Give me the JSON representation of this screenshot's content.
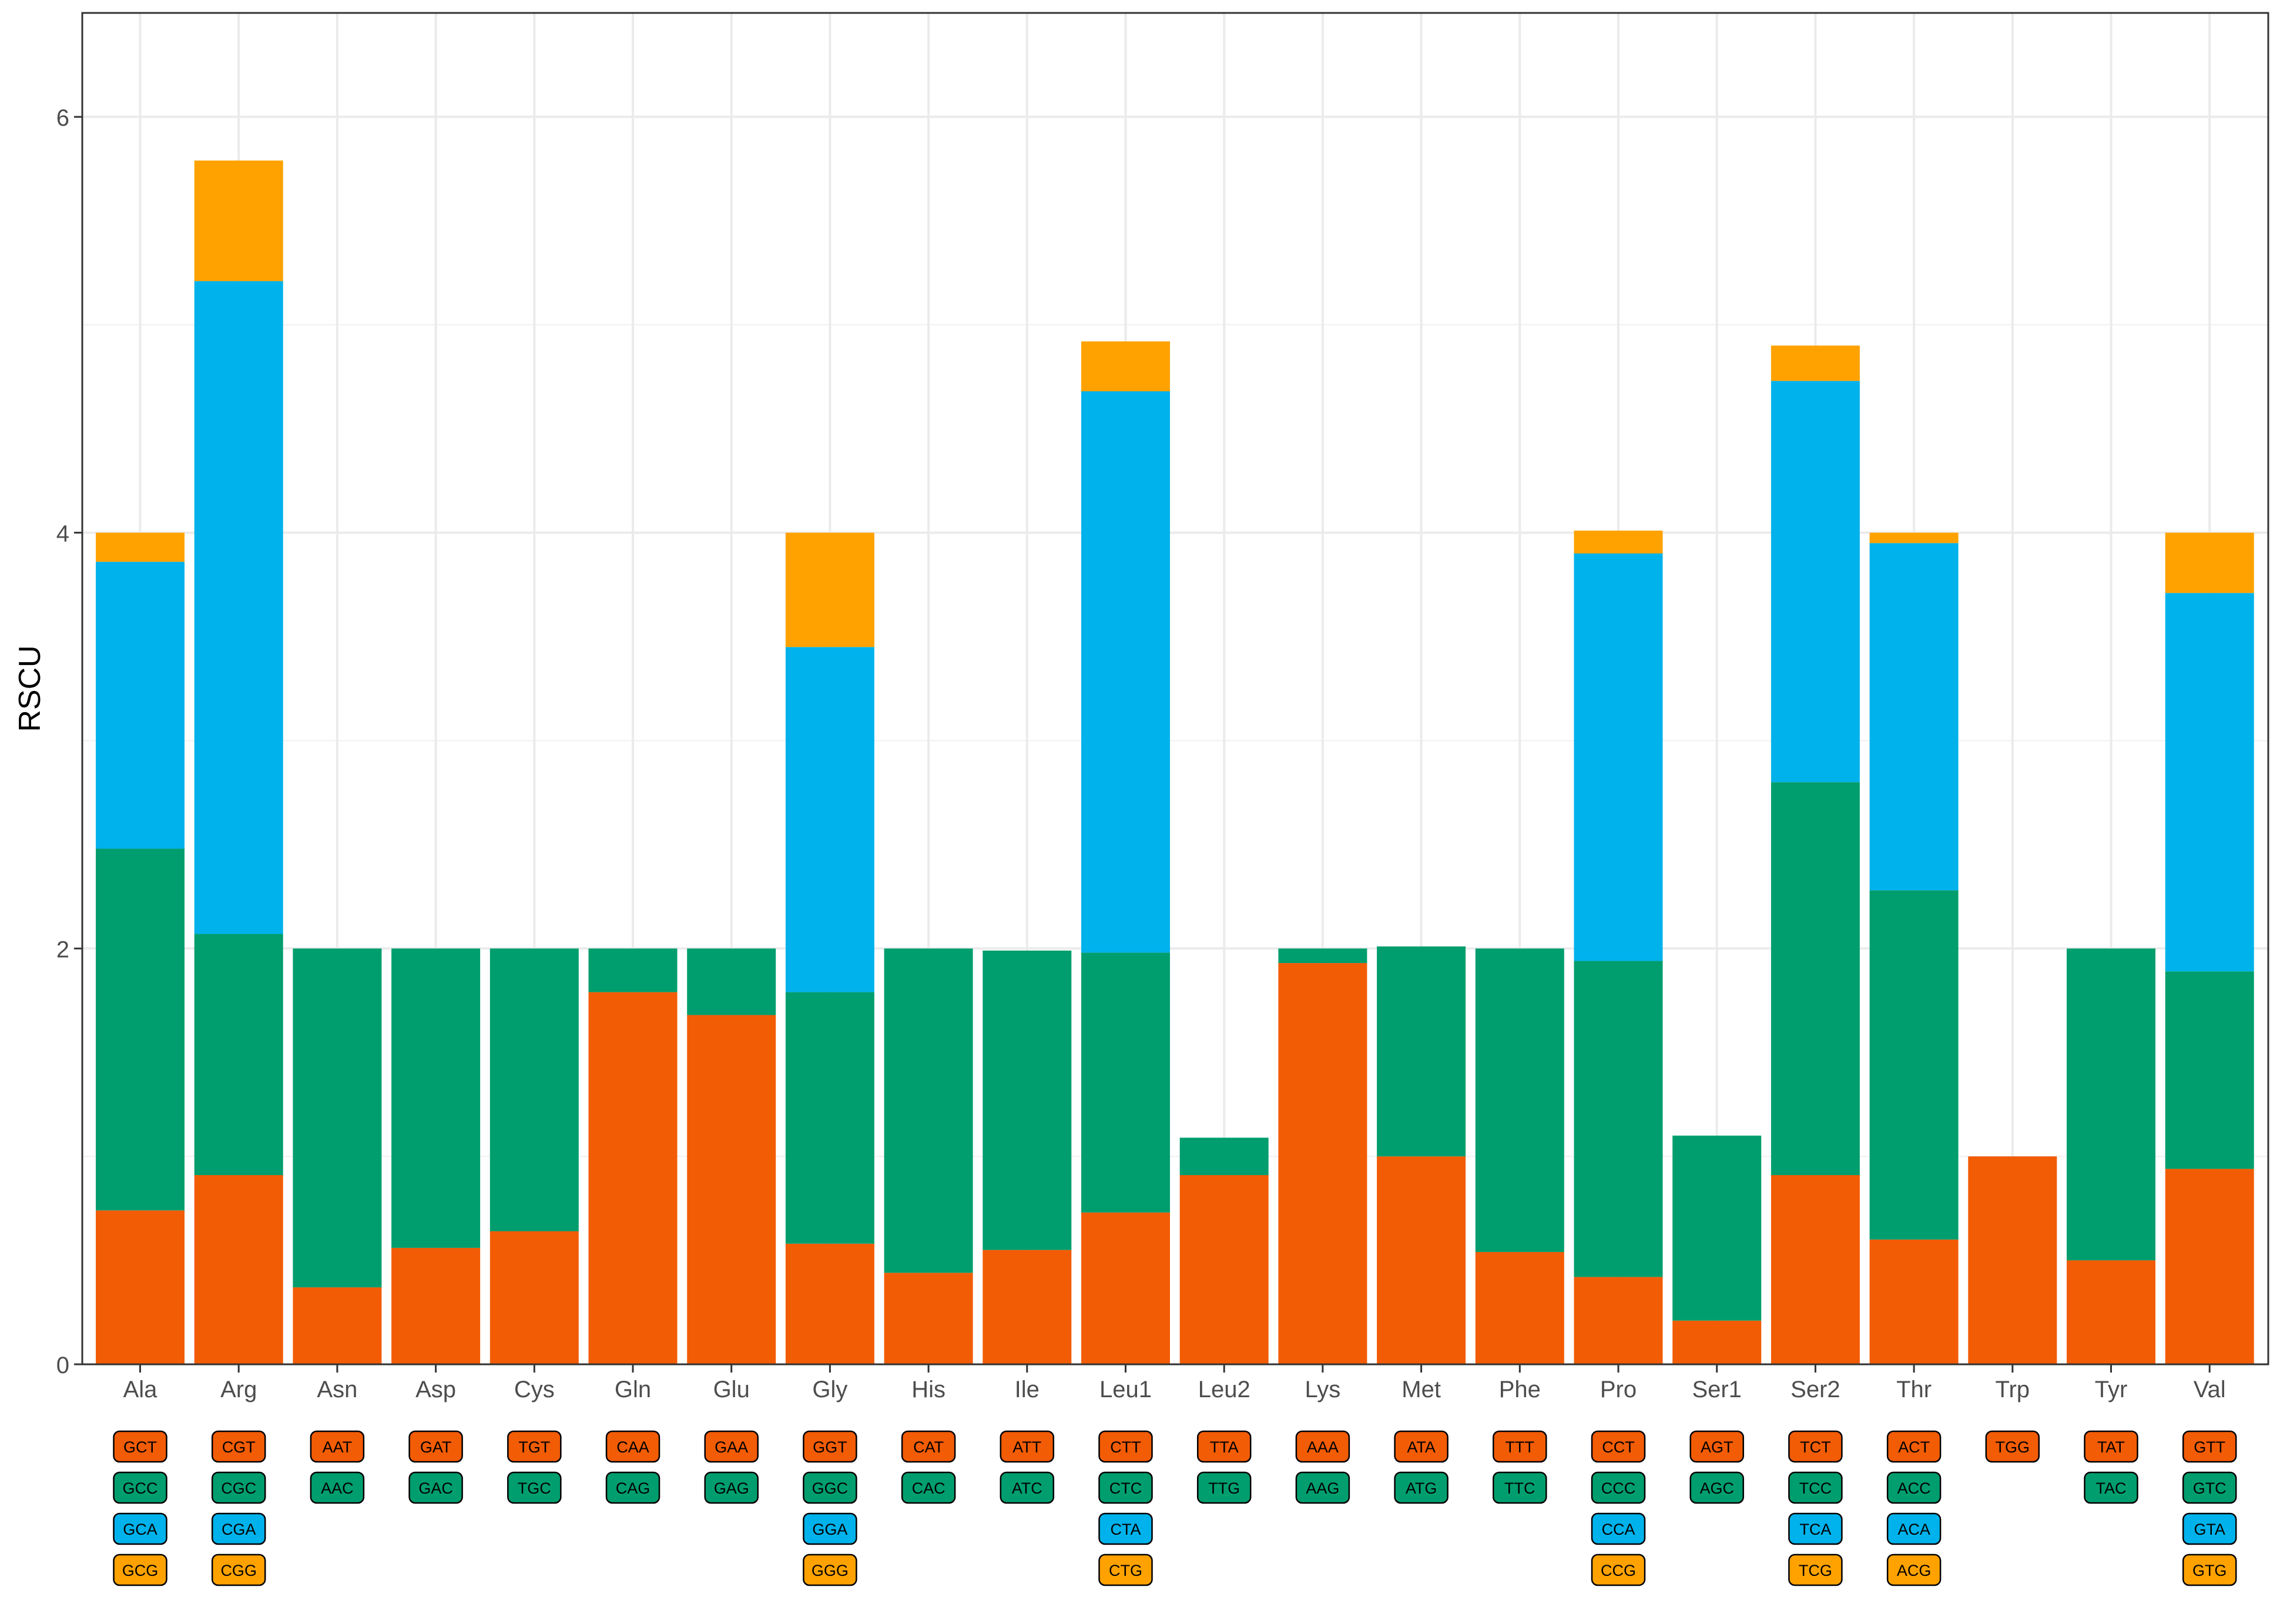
{
  "chart_data": {
    "type": "bar",
    "stacked": true,
    "title": "",
    "xlabel": "",
    "ylabel": "RSCU",
    "ylim": [
      0,
      6.5
    ],
    "yticks": [
      0,
      2,
      4,
      6
    ],
    "grid": true,
    "colors": [
      "#F25C05",
      "#009E6E",
      "#00B2EB",
      "#FFA200"
    ],
    "categories": [
      "Ala",
      "Arg",
      "Asn",
      "Asp",
      "Cys",
      "Gln",
      "Glu",
      "Gly",
      "His",
      "Ile",
      "Leu1",
      "Leu2",
      "Lys",
      "Met",
      "Phe",
      "Pro",
      "Ser1",
      "Ser2",
      "Thr",
      "Trp",
      "Tyr",
      "Val"
    ],
    "stacks": [
      [
        0.74,
        1.74,
        1.38,
        0.14
      ],
      [
        0.91,
        1.16,
        3.14,
        0.58
      ],
      [
        0.37,
        1.63
      ],
      [
        0.56,
        1.44
      ],
      [
        0.64,
        1.36
      ],
      [
        1.79,
        0.21
      ],
      [
        1.68,
        0.32
      ],
      [
        0.58,
        1.21,
        1.66,
        0.55
      ],
      [
        0.44,
        1.56
      ],
      [
        0.55,
        1.44
      ],
      [
        0.73,
        1.25,
        2.7,
        0.24
      ],
      [
        0.91,
        0.18
      ],
      [
        1.93,
        0.07
      ],
      [
        1.0,
        1.01
      ],
      [
        0.54,
        1.46
      ],
      [
        0.42,
        1.52,
        1.96,
        0.11
      ],
      [
        0.21,
        0.89
      ],
      [
        0.91,
        1.89,
        1.93,
        0.17
      ],
      [
        0.6,
        1.68,
        1.67,
        0.05
      ],
      [
        1.0
      ],
      [
        0.5,
        1.5
      ],
      [
        0.94,
        0.95,
        1.82,
        0.29
      ]
    ],
    "codons": [
      [
        "GCT",
        "GCC",
        "GCA",
        "GCG"
      ],
      [
        "CGT",
        "CGC",
        "CGA",
        "CGG"
      ],
      [
        "AAT",
        "AAC"
      ],
      [
        "GAT",
        "GAC"
      ],
      [
        "TGT",
        "TGC"
      ],
      [
        "CAA",
        "CAG"
      ],
      [
        "GAA",
        "GAG"
      ],
      [
        "GGT",
        "GGC",
        "GGA",
        "GGG"
      ],
      [
        "CAT",
        "CAC"
      ],
      [
        "ATT",
        "ATC"
      ],
      [
        "CTT",
        "CTC",
        "CTA",
        "CTG"
      ],
      [
        "TTA",
        "TTG"
      ],
      [
        "AAA",
        "AAG"
      ],
      [
        "ATA",
        "ATG"
      ],
      [
        "TTT",
        "TTC"
      ],
      [
        "CCT",
        "CCC",
        "CCA",
        "CCG"
      ],
      [
        "AGT",
        "AGC"
      ],
      [
        "TCT",
        "TCC",
        "TCA",
        "TCG"
      ],
      [
        "ACT",
        "ACC",
        "ACA",
        "ACG"
      ],
      [
        "TGG"
      ],
      [
        "TAT",
        "TAC"
      ],
      [
        "GTT",
        "GTC",
        "GTA",
        "GTG"
      ]
    ]
  }
}
